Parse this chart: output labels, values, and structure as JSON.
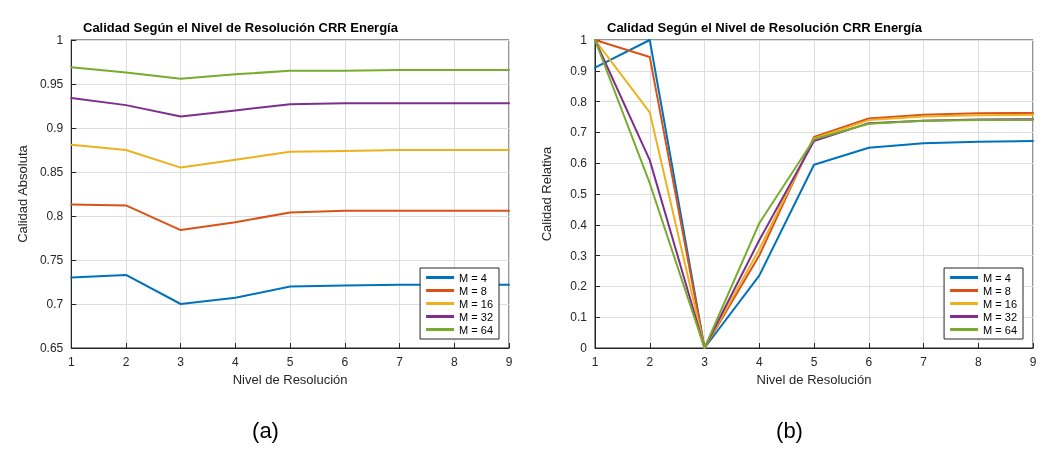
{
  "chart_data": [
    {
      "type": "line",
      "title": "Calidad Según el Nivel de Resolución CRR Energía",
      "xlabel": "Nivel de Resolución",
      "ylabel": "Calidad Absoluta",
      "x": [
        1,
        2,
        3,
        4,
        5,
        6,
        7,
        8,
        9
      ],
      "series": [
        {
          "name": "M = 4",
          "color": "#0072bd",
          "values": [
            0.73,
            0.733,
            0.7,
            0.707,
            0.72,
            0.721,
            0.722,
            null,
            0.722
          ]
        },
        {
          "name": "M = 8",
          "color": "#d95319",
          "values": [
            0.813,
            0.812,
            0.784,
            0.793,
            0.804,
            0.806,
            0.806,
            0.806,
            0.806
          ]
        },
        {
          "name": "M = 16",
          "color": "#edb120",
          "values": [
            0.881,
            0.875,
            0.855,
            0.864,
            0.873,
            0.874,
            0.875,
            0.875,
            0.875
          ]
        },
        {
          "name": "M = 32",
          "color": "#7e2f8e",
          "values": [
            0.934,
            0.926,
            0.913,
            0.92,
            0.927,
            0.928,
            0.928,
            0.928,
            0.928
          ]
        },
        {
          "name": "M = 64",
          "color": "#77ac30",
          "values": [
            0.969,
            0.963,
            0.956,
            0.961,
            0.965,
            0.965,
            0.966,
            0.966,
            0.966
          ]
        }
      ],
      "xlim": [
        1,
        9
      ],
      "xticks": [
        1,
        2,
        3,
        4,
        5,
        6,
        7,
        8,
        9
      ],
      "ylim": [
        0.65,
        1
      ],
      "yticks": [
        0.65,
        0.7,
        0.75,
        0.8,
        0.85,
        0.9,
        0.95,
        1
      ],
      "grid": true,
      "legend": "bottom right",
      "marker": "none",
      "line_style": "solid",
      "annotations": [
        "(a)"
      ]
    },
    {
      "type": "line",
      "title": "Calidad Según el Nivel de Resolución CRR Energía",
      "xlabel": "Nivel de Resolución",
      "ylabel": "Calidad Relativa",
      "x": [
        1,
        2,
        3,
        4,
        5,
        6,
        7,
        8,
        9
      ],
      "series": [
        {
          "name": "M = 4",
          "color": "#0072bd",
          "values": [
            0.91,
            1,
            0,
            0.235,
            0.595,
            0.65,
            0.665,
            0.67,
            0.672
          ]
        },
        {
          "name": "M = 8",
          "color": "#d95319",
          "values": [
            1,
            0.945,
            0,
            0.3,
            0.685,
            0.745,
            0.757,
            0.762,
            0.763
          ]
        },
        {
          "name": "M = 16",
          "color": "#edb120",
          "values": [
            1,
            0.765,
            0,
            0.32,
            0.68,
            0.74,
            0.752,
            0.756,
            0.757
          ]
        },
        {
          "name": "M = 32",
          "color": "#7e2f8e",
          "values": [
            1,
            0.61,
            0,
            0.35,
            0.672,
            0.73,
            0.738,
            0.742,
            0.743
          ]
        },
        {
          "name": "M = 64",
          "color": "#77ac30",
          "values": [
            1,
            0.535,
            0,
            0.405,
            0.678,
            0.728,
            0.738,
            0.74,
            0.74
          ]
        }
      ],
      "xlim": [
        1,
        9
      ],
      "xticks": [
        1,
        2,
        3,
        4,
        5,
        6,
        7,
        8,
        9
      ],
      "ylim": [
        0,
        1
      ],
      "yticks": [
        0,
        0.1,
        0.2,
        0.3,
        0.4,
        0.5,
        0.6,
        0.7,
        0.8,
        0.9,
        1
      ],
      "grid": true,
      "legend": "bottom right",
      "marker": "none",
      "line_style": "solid",
      "annotations": [
        "(b)"
      ]
    }
  ]
}
